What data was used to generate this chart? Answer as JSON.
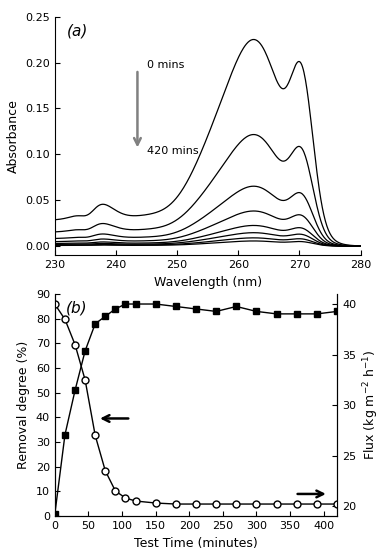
{
  "panel_a": {
    "title": "(a)",
    "xlabel": "Wavelength (nm)",
    "ylabel": "Absorbance",
    "xlim": [
      230,
      280
    ],
    "ylim": [
      -0.01,
      0.25
    ],
    "yticks": [
      0.0,
      0.05,
      0.1,
      0.15,
      0.2,
      0.25
    ],
    "xticks": [
      230,
      240,
      250,
      260,
      270,
      280
    ],
    "annotation_top": "0 mins",
    "annotation_bottom": "420 mins",
    "scale_factors": [
      1.0,
      0.54,
      0.29,
      0.17,
      0.1,
      0.065,
      0.04,
      0.025
    ]
  },
  "panel_b": {
    "title": "(b)",
    "xlabel": "Test Time (minutes)",
    "ylabel_left": "Removal degree (%)",
    "ylabel_right": "Flux (kg m$^{-2}$ h$^{-1}$)",
    "xlim": [
      0,
      420
    ],
    "ylim_left": [
      0,
      90
    ],
    "ylim_right": [
      19,
      41
    ],
    "yticks_left": [
      0,
      10,
      20,
      30,
      40,
      50,
      60,
      70,
      80,
      90
    ],
    "yticks_right": [
      20,
      25,
      30,
      35,
      40
    ],
    "xticks": [
      0,
      50,
      100,
      150,
      200,
      250,
      300,
      350,
      400
    ],
    "removal_time": [
      0,
      15,
      30,
      45,
      60,
      75,
      90,
      105,
      120,
      150,
      180,
      210,
      240,
      270,
      300,
      330,
      360,
      390,
      420
    ],
    "removal_degree": [
      1,
      33,
      51,
      67,
      78,
      81,
      84,
      86,
      86,
      86,
      85,
      84,
      83,
      85,
      83,
      82,
      82,
      82,
      83
    ],
    "flux_time": [
      0,
      15,
      30,
      45,
      60,
      75,
      90,
      105,
      120,
      150,
      180,
      210,
      240,
      270,
      300,
      330,
      360,
      390,
      420
    ],
    "flux_right": [
      40,
      38.5,
      36,
      32.5,
      27,
      23.5,
      21.5,
      20.8,
      20.5,
      20.3,
      20.2,
      20.2,
      20.2,
      20.2,
      20.2,
      20.2,
      20.2,
      20.2,
      20.2
    ]
  }
}
